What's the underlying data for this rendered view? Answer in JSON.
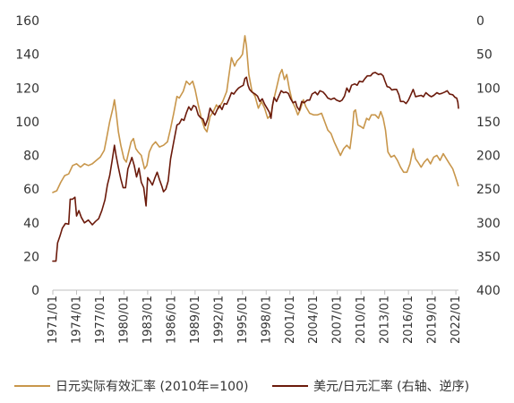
{
  "chart_data": {
    "type": "line",
    "title": "",
    "x_tick_labels": [
      "1971/01",
      "1974/01",
      "1977/01",
      "1980/01",
      "1983/01",
      "1986/01",
      "1989/01",
      "1992/01",
      "1995/01",
      "1998/01",
      "2001/01",
      "2004/01",
      "2007/01",
      "2010/01",
      "2013/01",
      "2016/01",
      "2019/01",
      "2022/01"
    ],
    "x_range": [
      1971.0,
      2022.33
    ],
    "y_left": {
      "ticks": [
        "0",
        "20",
        "40",
        "60",
        "80",
        "100",
        "120",
        "140",
        "160"
      ],
      "range": [
        0,
        160
      ]
    },
    "y_right": {
      "ticks": [
        "0",
        "50",
        "100",
        "150",
        "200",
        "250",
        "300",
        "350",
        "400"
      ],
      "range": [
        0,
        400
      ],
      "inverted": true
    },
    "series": [
      {
        "name": "日元实际有效汇率 (2010年=100)",
        "color": "#C8964B",
        "axis": "left",
        "points": [
          [
            1971.0,
            58
          ],
          [
            1971.5,
            59
          ],
          [
            1972.0,
            64
          ],
          [
            1972.5,
            68
          ],
          [
            1973.0,
            69
          ],
          [
            1973.5,
            74
          ],
          [
            1974.0,
            75
          ],
          [
            1974.5,
            73
          ],
          [
            1975.0,
            75
          ],
          [
            1975.5,
            74
          ],
          [
            1976.0,
            75
          ],
          [
            1976.5,
            77
          ],
          [
            1977.0,
            79
          ],
          [
            1977.5,
            83
          ],
          [
            1977.8,
            90
          ],
          [
            1978.2,
            100
          ],
          [
            1978.6,
            108
          ],
          [
            1978.8,
            113
          ],
          [
            1979.0,
            106
          ],
          [
            1979.3,
            94
          ],
          [
            1979.6,
            86
          ],
          [
            1980.0,
            78
          ],
          [
            1980.3,
            76
          ],
          [
            1980.6,
            82
          ],
          [
            1980.9,
            88
          ],
          [
            1981.2,
            90
          ],
          [
            1981.5,
            84
          ],
          [
            1981.8,
            82
          ],
          [
            1982.2,
            80
          ],
          [
            1982.6,
            72
          ],
          [
            1982.9,
            74
          ],
          [
            1983.2,
            82
          ],
          [
            1983.6,
            86
          ],
          [
            1984.0,
            88
          ],
          [
            1984.5,
            85
          ],
          [
            1985.0,
            86
          ],
          [
            1985.5,
            88
          ],
          [
            1985.9,
            96
          ],
          [
            1986.3,
            105
          ],
          [
            1986.7,
            115
          ],
          [
            1987.0,
            114
          ],
          [
            1987.5,
            118
          ],
          [
            1987.9,
            124
          ],
          [
            1988.3,
            122
          ],
          [
            1988.7,
            124
          ],
          [
            1989.0,
            119
          ],
          [
            1989.4,
            110
          ],
          [
            1989.8,
            102
          ],
          [
            1990.2,
            96
          ],
          [
            1990.5,
            94
          ],
          [
            1990.9,
            103
          ],
          [
            1991.3,
            106
          ],
          [
            1991.7,
            110
          ],
          [
            1992.0,
            108
          ],
          [
            1992.5,
            112
          ],
          [
            1993.0,
            118
          ],
          [
            1993.3,
            128
          ],
          [
            1993.6,
            138
          ],
          [
            1994.0,
            133
          ],
          [
            1994.3,
            136
          ],
          [
            1994.7,
            138
          ],
          [
            1995.0,
            140
          ],
          [
            1995.3,
            151
          ],
          [
            1995.5,
            145
          ],
          [
            1995.8,
            128
          ],
          [
            1996.2,
            118
          ],
          [
            1996.6,
            115
          ],
          [
            1997.0,
            108
          ],
          [
            1997.4,
            112
          ],
          [
            1997.8,
            108
          ],
          [
            1998.2,
            102
          ],
          [
            1998.6,
            104
          ],
          [
            1998.9,
            112
          ],
          [
            1999.3,
            120
          ],
          [
            1999.7,
            128
          ],
          [
            2000.0,
            131
          ],
          [
            2000.3,
            125
          ],
          [
            2000.6,
            128
          ],
          [
            2000.9,
            120
          ],
          [
            2001.3,
            112
          ],
          [
            2001.7,
            108
          ],
          [
            2002.0,
            104
          ],
          [
            2002.3,
            107
          ],
          [
            2002.7,
            113
          ],
          [
            2003.0,
            109
          ],
          [
            2003.5,
            105
          ],
          [
            2004.0,
            104
          ],
          [
            2004.5,
            104
          ],
          [
            2005.0,
            105
          ],
          [
            2005.4,
            100
          ],
          [
            2005.8,
            95
          ],
          [
            2006.2,
            93
          ],
          [
            2006.6,
            88
          ],
          [
            2007.0,
            84
          ],
          [
            2007.4,
            80
          ],
          [
            2007.8,
            84
          ],
          [
            2008.2,
            86
          ],
          [
            2008.6,
            84
          ],
          [
            2008.9,
            95
          ],
          [
            2009.1,
            106
          ],
          [
            2009.3,
            107
          ],
          [
            2009.6,
            98
          ],
          [
            2010.0,
            97
          ],
          [
            2010.3,
            96
          ],
          [
            2010.7,
            102
          ],
          [
            2011.0,
            101
          ],
          [
            2011.3,
            104
          ],
          [
            2011.8,
            104
          ],
          [
            2012.2,
            102
          ],
          [
            2012.5,
            106
          ],
          [
            2012.8,
            102
          ],
          [
            2013.1,
            95
          ],
          [
            2013.4,
            82
          ],
          [
            2013.8,
            79
          ],
          [
            2014.2,
            80
          ],
          [
            2014.6,
            77
          ],
          [
            2015.0,
            73
          ],
          [
            2015.4,
            70
          ],
          [
            2015.8,
            70
          ],
          [
            2016.2,
            75
          ],
          [
            2016.6,
            84
          ],
          [
            2016.9,
            78
          ],
          [
            2017.2,
            76
          ],
          [
            2017.6,
            73
          ],
          [
            2018.0,
            76
          ],
          [
            2018.4,
            78
          ],
          [
            2018.8,
            75
          ],
          [
            2019.2,
            79
          ],
          [
            2019.6,
            80
          ],
          [
            2020.0,
            77
          ],
          [
            2020.4,
            81
          ],
          [
            2020.8,
            78
          ],
          [
            2021.2,
            75
          ],
          [
            2021.6,
            72
          ],
          [
            2021.9,
            68
          ],
          [
            2022.1,
            65
          ],
          [
            2022.3,
            62
          ]
        ]
      },
      {
        "name": "美元/日元汇率 (右轴、逆序)",
        "color": "#6B1A0B",
        "axis": "right",
        "points": [
          [
            1971.0,
            357
          ],
          [
            1971.4,
            357
          ],
          [
            1971.6,
            330
          ],
          [
            1971.9,
            320
          ],
          [
            1972.2,
            308
          ],
          [
            1972.6,
            301
          ],
          [
            1973.0,
            302
          ],
          [
            1973.2,
            265
          ],
          [
            1973.5,
            265
          ],
          [
            1973.8,
            262
          ],
          [
            1974.0,
            290
          ],
          [
            1974.3,
            282
          ],
          [
            1974.6,
            292
          ],
          [
            1975.0,
            300
          ],
          [
            1975.5,
            296
          ],
          [
            1976.0,
            303
          ],
          [
            1976.4,
            298
          ],
          [
            1976.8,
            294
          ],
          [
            1977.2,
            282
          ],
          [
            1977.6,
            266
          ],
          [
            1977.9,
            244
          ],
          [
            1978.2,
            230
          ],
          [
            1978.5,
            208
          ],
          [
            1978.8,
            185
          ],
          [
            1979.0,
            200
          ],
          [
            1979.3,
            218
          ],
          [
            1979.6,
            235
          ],
          [
            1979.9,
            248
          ],
          [
            1980.2,
            248
          ],
          [
            1980.5,
            220
          ],
          [
            1980.8,
            210
          ],
          [
            1981.0,
            203
          ],
          [
            1981.3,
            215
          ],
          [
            1981.6,
            232
          ],
          [
            1981.9,
            219
          ],
          [
            1982.2,
            240
          ],
          [
            1982.5,
            248
          ],
          [
            1982.8,
            275
          ],
          [
            1983.0,
            233
          ],
          [
            1983.3,
            238
          ],
          [
            1983.6,
            244
          ],
          [
            1983.9,
            234
          ],
          [
            1984.2,
            225
          ],
          [
            1984.5,
            236
          ],
          [
            1984.8,
            246
          ],
          [
            1985.0,
            254
          ],
          [
            1985.3,
            250
          ],
          [
            1985.6,
            238
          ],
          [
            1985.9,
            205
          ],
          [
            1986.3,
            180
          ],
          [
            1986.7,
            155
          ],
          [
            1987.0,
            153
          ],
          [
            1987.3,
            146
          ],
          [
            1987.6,
            148
          ],
          [
            1987.9,
            137
          ],
          [
            1988.2,
            128
          ],
          [
            1988.5,
            133
          ],
          [
            1988.8,
            126
          ],
          [
            1989.1,
            128
          ],
          [
            1989.4,
            140
          ],
          [
            1989.7,
            144
          ],
          [
            1990.0,
            146
          ],
          [
            1990.3,
            156
          ],
          [
            1990.6,
            146
          ],
          [
            1990.9,
            130
          ],
          [
            1991.2,
            136
          ],
          [
            1991.5,
            140
          ],
          [
            1991.8,
            132
          ],
          [
            1992.1,
            126
          ],
          [
            1992.4,
            132
          ],
          [
            1992.7,
            123
          ],
          [
            1993.0,
            124
          ],
          [
            1993.3,
            116
          ],
          [
            1993.6,
            107
          ],
          [
            1993.9,
            109
          ],
          [
            1994.2,
            104
          ],
          [
            1994.5,
            100
          ],
          [
            1994.8,
            98
          ],
          [
            1995.1,
            96
          ],
          [
            1995.3,
            86
          ],
          [
            1995.5,
            84
          ],
          [
            1995.7,
            96
          ],
          [
            1995.9,
            102
          ],
          [
            1996.2,
            106
          ],
          [
            1996.6,
            109
          ],
          [
            1996.9,
            112
          ],
          [
            1997.2,
            120
          ],
          [
            1997.5,
            116
          ],
          [
            1997.8,
            124
          ],
          [
            1998.1,
            130
          ],
          [
            1998.4,
            136
          ],
          [
            1998.6,
            145
          ],
          [
            1998.8,
            126
          ],
          [
            1999.0,
            114
          ],
          [
            1999.3,
            120
          ],
          [
            1999.6,
            112
          ],
          [
            1999.9,
            104
          ],
          [
            2000.2,
            107
          ],
          [
            2000.5,
            106
          ],
          [
            2000.8,
            108
          ],
          [
            2001.1,
            116
          ],
          [
            2001.4,
            122
          ],
          [
            2001.7,
            120
          ],
          [
            2001.9,
            128
          ],
          [
            2002.2,
            133
          ],
          [
            2002.5,
            120
          ],
          [
            2002.8,
            122
          ],
          [
            2003.2,
            118
          ],
          [
            2003.5,
            118
          ],
          [
            2003.8,
            109
          ],
          [
            2004.2,
            106
          ],
          [
            2004.5,
            110
          ],
          [
            2004.8,
            104
          ],
          [
            2005.2,
            106
          ],
          [
            2005.5,
            110
          ],
          [
            2005.8,
            115
          ],
          [
            2006.2,
            117
          ],
          [
            2006.6,
            115
          ],
          [
            2006.9,
            118
          ],
          [
            2007.3,
            120
          ],
          [
            2007.6,
            118
          ],
          [
            2007.9,
            112
          ],
          [
            2008.2,
            100
          ],
          [
            2008.5,
            106
          ],
          [
            2008.8,
            96
          ],
          [
            2009.2,
            94
          ],
          [
            2009.5,
            96
          ],
          [
            2009.8,
            90
          ],
          [
            2010.2,
            91
          ],
          [
            2010.5,
            86
          ],
          [
            2010.8,
            82
          ],
          [
            2011.2,
            82
          ],
          [
            2011.5,
            78
          ],
          [
            2011.8,
            77
          ],
          [
            2012.2,
            80
          ],
          [
            2012.5,
            79
          ],
          [
            2012.8,
            82
          ],
          [
            2013.0,
            89
          ],
          [
            2013.3,
            98
          ],
          [
            2013.6,
            99
          ],
          [
            2013.9,
            103
          ],
          [
            2014.2,
            102
          ],
          [
            2014.5,
            102
          ],
          [
            2014.8,
            110
          ],
          [
            2015.0,
            120
          ],
          [
            2015.4,
            120
          ],
          [
            2015.7,
            123
          ],
          [
            2016.0,
            118
          ],
          [
            2016.3,
            110
          ],
          [
            2016.6,
            102
          ],
          [
            2016.9,
            113
          ],
          [
            2017.2,
            112
          ],
          [
            2017.6,
            111
          ],
          [
            2017.9,
            113
          ],
          [
            2018.2,
            107
          ],
          [
            2018.6,
            111
          ],
          [
            2018.9,
            113
          ],
          [
            2019.2,
            111
          ],
          [
            2019.6,
            107
          ],
          [
            2019.9,
            109
          ],
          [
            2020.2,
            108
          ],
          [
            2020.6,
            106
          ],
          [
            2020.9,
            104
          ],
          [
            2021.2,
            109
          ],
          [
            2021.6,
            110
          ],
          [
            2021.9,
            114
          ],
          [
            2022.1,
            115
          ],
          [
            2022.25,
            121
          ],
          [
            2022.33,
            130
          ]
        ]
      }
    ],
    "legend": {
      "position": "bottom"
    }
  }
}
